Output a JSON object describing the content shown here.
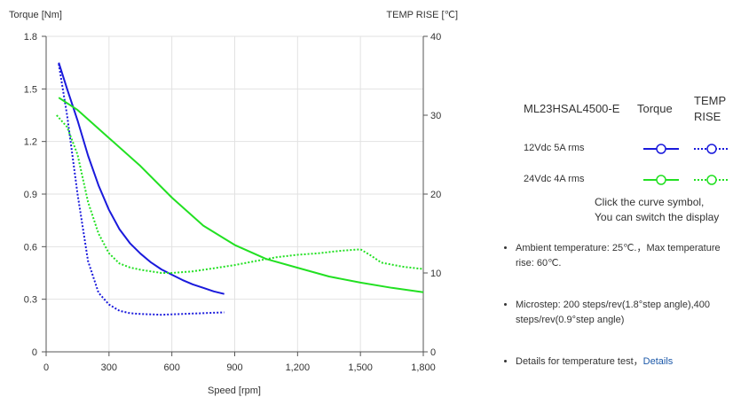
{
  "chart_data": {
    "type": "line",
    "xlabel": "Speed [rpm]",
    "ylabel_left": "Torque  [Nm]",
    "ylabel_right": "TEMP RISE [℃]",
    "xlim": [
      0,
      1800
    ],
    "ylim_left": [
      0,
      1.8
    ],
    "ylim_right": [
      0,
      40
    ],
    "x_ticks": [
      0,
      300,
      600,
      900,
      1200,
      1500,
      1800
    ],
    "x_tick_labels": [
      "0",
      "300",
      "600",
      "900",
      "1,200",
      "1,500",
      "1,800"
    ],
    "y_left_ticks": [
      0,
      0.3,
      0.6,
      0.9,
      1.2,
      1.5,
      1.8
    ],
    "y_left_tick_labels": [
      "0",
      "0.3",
      "0.6",
      "0.9",
      "1.2",
      "1.5",
      "1.8"
    ],
    "y_right_ticks": [
      0,
      10,
      20,
      30,
      40
    ],
    "y_right_tick_labels": [
      "0",
      "10",
      "20",
      "30",
      "40"
    ],
    "grid": true,
    "series": [
      {
        "key": "torque_12v",
        "axis": "left",
        "color": "#1a1adc",
        "dash": false,
        "x": [
          60,
          100,
          150,
          200,
          250,
          300,
          350,
          400,
          450,
          500,
          550,
          600,
          650,
          700,
          750,
          800,
          850
        ],
        "y": [
          1.65,
          1.5,
          1.32,
          1.12,
          0.95,
          0.81,
          0.7,
          0.62,
          0.56,
          0.51,
          0.47,
          0.44,
          0.41,
          0.385,
          0.365,
          0.345,
          0.33
        ]
      },
      {
        "key": "temp_12v",
        "axis": "right",
        "color": "#1a1adc",
        "dash": true,
        "x": [
          60,
          100,
          150,
          200,
          250,
          300,
          350,
          400,
          450,
          500,
          550,
          600,
          650,
          700,
          750,
          800,
          850
        ],
        "y": [
          36.5,
          30.0,
          20.0,
          11.5,
          7.5,
          6.0,
          5.2,
          4.9,
          4.8,
          4.75,
          4.7,
          4.75,
          4.8,
          4.85,
          4.9,
          4.95,
          5.0
        ]
      },
      {
        "key": "torque_24v",
        "axis": "left",
        "color": "#22e022",
        "dash": false,
        "x": [
          60,
          150,
          300,
          450,
          600,
          750,
          900,
          1050,
          1200,
          1350,
          1500,
          1650,
          1800
        ],
        "y": [
          1.45,
          1.38,
          1.22,
          1.06,
          0.88,
          0.72,
          0.61,
          0.53,
          0.48,
          0.43,
          0.395,
          0.365,
          0.34
        ]
      },
      {
        "key": "temp_24v",
        "axis": "right",
        "color": "#22e022",
        "dash": true,
        "x": [
          50,
          100,
          150,
          200,
          250,
          300,
          350,
          400,
          450,
          500,
          550,
          600,
          700,
          800,
          900,
          1000,
          1100,
          1200,
          1300,
          1400,
          1500,
          1550,
          1600,
          1700,
          1800
        ],
        "y": [
          30.0,
          28.5,
          25.0,
          19.0,
          15.0,
          12.5,
          11.2,
          10.7,
          10.4,
          10.2,
          10.0,
          10.0,
          10.2,
          10.6,
          11.0,
          11.5,
          12.0,
          12.3,
          12.5,
          12.8,
          13.0,
          12.2,
          11.3,
          10.8,
          10.5
        ]
      }
    ]
  },
  "legend": {
    "model": "ML23HSAL4500-E",
    "col_torque": "Torque",
    "col_temp": "TEMP RISE",
    "rows": [
      {
        "label": "12Vdc   5A rms",
        "color": "#1a1adc"
      },
      {
        "label": "24Vdc   4A rms",
        "color": "#22e022"
      }
    ],
    "hint_line1": "Click the curve symbol,",
    "hint_line2": "You can switch the display"
  },
  "notes": {
    "ambient": "Ambient temperature: 25℃.，Max temperature rise: 60℃.",
    "microstep": "Microstep: 200 steps/rev(1.8°step angle),400 steps/rev(0.9°step angle)",
    "details_prefix": "Details for temperature test，",
    "details_link": "Details"
  }
}
